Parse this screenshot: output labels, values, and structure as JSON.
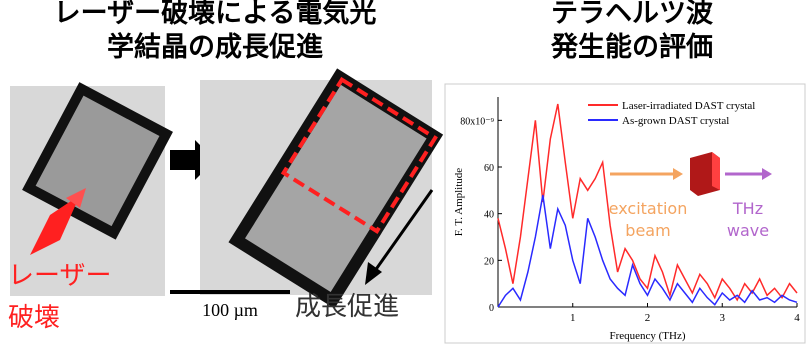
{
  "left_title": [
    "レーザー破壊による電気光",
    "学結晶の成長促進"
  ],
  "right_title": [
    "テラヘルツ波",
    "発生能の評価"
  ],
  "laser_label": [
    "レーザー",
    "破壊"
  ],
  "scale_label": "100 µm",
  "growth_label": "成長促進",
  "chart_data": {
    "type": "line",
    "xlabel": "Frequency (THz)",
    "ylabel": "F. T. Amplitude",
    "xlim": [
      0,
      4
    ],
    "xticks": [
      1,
      2,
      3,
      4
    ],
    "ylim": [
      0,
      90
    ],
    "yticks": [
      0,
      20,
      40,
      60,
      {
        "value": 80,
        "label": "80x10⁻⁹"
      }
    ],
    "x": [
      0,
      0.1,
      0.2,
      0.3,
      0.4,
      0.5,
      0.6,
      0.7,
      0.8,
      0.9,
      1,
      1.1,
      1.2,
      1.3,
      1.4,
      1.5,
      1.6,
      1.7,
      1.8,
      1.9,
      2,
      2.1,
      2.2,
      2.3,
      2.4,
      2.5,
      2.6,
      2.7,
      2.8,
      2.9,
      3,
      3.1,
      3.2,
      3.3,
      3.4,
      3.5,
      3.6,
      3.7,
      3.8,
      3.9,
      4
    ],
    "series": [
      {
        "name": "Laser-irradiated DAST crystal",
        "color": "#ff2a2a",
        "values": [
          38,
          25,
          10,
          30,
          55,
          80,
          45,
          72,
          87,
          62,
          38,
          55,
          50,
          55,
          62,
          35,
          15,
          25,
          20,
          12,
          8,
          22,
          15,
          5,
          18,
          12,
          6,
          14,
          10,
          4,
          12,
          8,
          3,
          10,
          6,
          12,
          5,
          8,
          4,
          10,
          6
        ]
      },
      {
        "name": "As-grown DAST crystal",
        "color": "#2a2aff",
        "values": [
          0,
          5,
          8,
          3,
          15,
          30,
          48,
          25,
          42,
          35,
          20,
          10,
          38,
          30,
          20,
          12,
          8,
          5,
          18,
          10,
          5,
          12,
          8,
          3,
          10,
          6,
          2,
          8,
          4,
          1,
          6,
          3,
          5,
          2,
          7,
          3,
          4,
          2,
          5,
          3,
          2
        ]
      }
    ],
    "annotations": [
      {
        "lines": [
          "excitation",
          "beam"
        ],
        "color": "#f4a460"
      },
      {
        "lines": [
          "THz",
          "wave"
        ],
        "color": "#b266cc"
      }
    ]
  }
}
